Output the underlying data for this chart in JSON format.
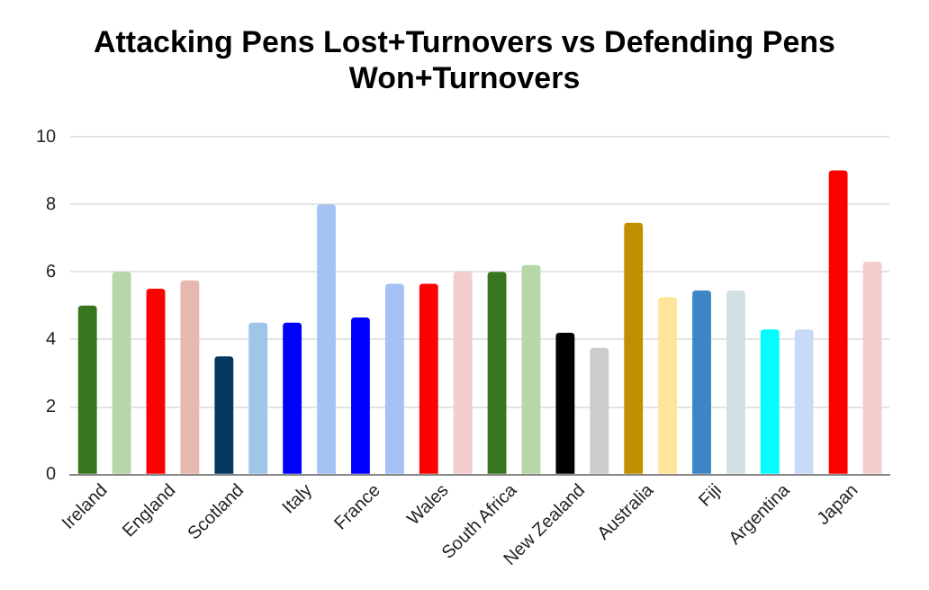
{
  "chart_data": {
    "type": "bar",
    "title": "Attacking Pens Lost+Turnovers vs Defending Pens Won+Turnovers",
    "categories": [
      "Ireland",
      "England",
      "Scotland",
      "Italy",
      "France",
      "Wales",
      "South Africa",
      "New Zealand",
      "Australia",
      "Fiji",
      "Argentina",
      "Japan"
    ],
    "series": [
      {
        "values": [
          5.0,
          5.5,
          3.5,
          4.5,
          4.65,
          5.65,
          6.0,
          4.2,
          7.45,
          5.45,
          4.3,
          9.0
        ],
        "colors": [
          "#38761d",
          "#ff0000",
          "#073763",
          "#0000ff",
          "#0000ff",
          "#ff0000",
          "#38761d",
          "#000000",
          "#bf9000",
          "#3d85c6",
          "#00ffff",
          "#ff0000"
        ]
      },
      {
        "values": [
          6.0,
          5.75,
          4.5,
          8.0,
          5.65,
          6.0,
          6.2,
          3.75,
          5.25,
          5.45,
          4.3,
          6.3
        ],
        "colors": [
          "#b6d7a8",
          "#e6b8af",
          "#9fc5e8",
          "#a4c2f4",
          "#a4c2f4",
          "#f4cccc",
          "#b6d7a8",
          "#cccccc",
          "#ffe599",
          "#d0e0e3",
          "#c9daf8",
          "#f4cccc"
        ]
      }
    ],
    "ylim": [
      0,
      10
    ],
    "yticks": [
      0,
      2,
      4,
      6,
      8,
      10
    ],
    "grid": "y",
    "legend": false
  }
}
